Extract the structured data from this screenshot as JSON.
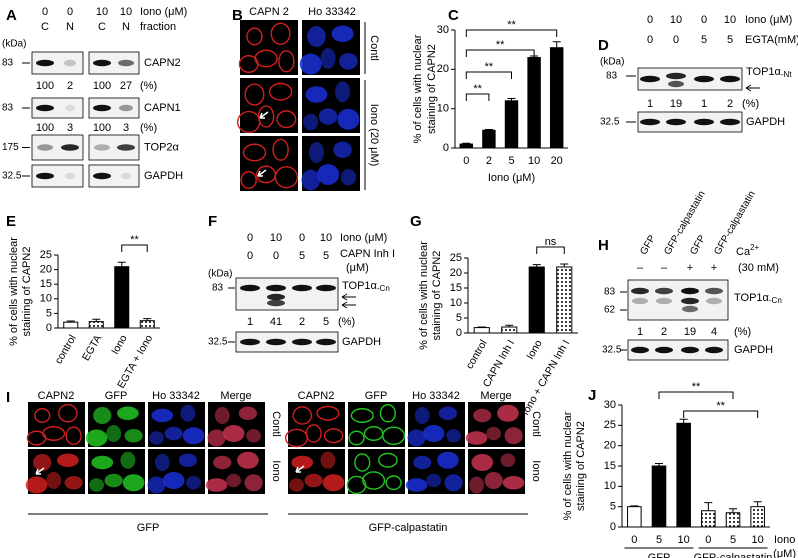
{
  "panel_labels": [
    "A",
    "B",
    "C",
    "D",
    "E",
    "F",
    "G",
    "H",
    "I",
    "J"
  ],
  "A": {
    "iono": [
      0,
      0,
      10,
      10
    ],
    "iono_label": "Iono (μM)",
    "fractions": [
      "C",
      "N",
      "C",
      "N"
    ],
    "fraction_label": "fraction",
    "kda": "(kDa)",
    "rows": [
      {
        "name": "CAPN2",
        "marker": 83
      },
      {
        "name": "CAPN1",
        "marker": 83
      },
      {
        "name": "TOP2α",
        "marker": 175
      },
      {
        "name": "GAPDH",
        "marker": 32.5
      }
    ],
    "quant": [
      [
        100,
        2,
        100,
        27
      ],
      [
        100,
        3,
        100,
        3
      ]
    ],
    "unit": "(%)"
  },
  "B": {
    "columns": [
      "CAPN 2",
      "Ho 33342"
    ],
    "rows": [
      "Contl",
      "Iono (20 μM)"
    ]
  },
  "D": {
    "iono": [
      0,
      10,
      0,
      10
    ],
    "iono_label": "Iono (μM)",
    "egta": [
      0,
      0,
      5,
      5
    ],
    "egta_label": "EGTA(mM)",
    "kda": "(kDa)",
    "markers": [
      83,
      32.5
    ],
    "protein": "TOP1α",
    "protein_sub": "-Nt",
    "quant": [
      1,
      19,
      1,
      2
    ],
    "unit": "(%)",
    "loading": "GAPDH"
  },
  "F": {
    "iono": [
      0,
      10,
      0,
      10
    ],
    "iono_label": "Iono (μM)",
    "inh": [
      0,
      0,
      5,
      5
    ],
    "inh_label": [
      "CAPN Inh I",
      "(μM)"
    ],
    "kda": "(kDa)",
    "markers": [
      83,
      32.5
    ],
    "protein": "TOP1α",
    "protein_sub": "-Cn",
    "quant": [
      1,
      41,
      2,
      5
    ],
    "unit": "(%)",
    "loading": "GAPDH"
  },
  "H": {
    "lanes": [
      "GFP",
      "GFP-calpastatin",
      "GFP",
      "GFP-calpastatin"
    ],
    "ca": "Ca",
    "ca_sup": "2+",
    "ca_conc": "(30 mM)",
    "ca_signs": [
      "–",
      "–",
      "+",
      "+"
    ],
    "markers": [
      83,
      62,
      32.5
    ],
    "protein": "TOP1α",
    "protein_sub": "-Cn",
    "quant": [
      1,
      2,
      19,
      4
    ],
    "unit": "(%)",
    "loading": "GAPDH"
  },
  "I": {
    "groups": [
      {
        "name": "GFP",
        "columns": [
          "CAPN2",
          "GFP",
          "Ho 33342",
          "Merge"
        ],
        "rows": [
          "Contl",
          "Iono"
        ]
      },
      {
        "name": "GFP-calpastatin",
        "columns": [
          "CAPN2",
          "GFP",
          "Ho 33342",
          "Merge"
        ],
        "rows": [
          "Contl",
          "Iono"
        ]
      }
    ]
  },
  "chart_data": [
    {
      "type": "bar",
      "ylabel": [
        "% of cells with nuclear",
        "staining of CAPN2"
      ],
      "xlabel": "Iono (μM)",
      "categories": [
        "0",
        "2",
        "5",
        "10",
        "20"
      ],
      "values": [
        1,
        4.5,
        12,
        23,
        25.5
      ],
      "errors": [
        0.2,
        0.2,
        0.6,
        0.4,
        1.5
      ],
      "fills": [
        "black",
        "black",
        "black",
        "black",
        "black"
      ],
      "ylim": [
        0,
        30
      ],
      "yticks": [
        0,
        10,
        20,
        30
      ],
      "significance": [
        "**",
        "**",
        "**",
        "**"
      ]
    },
    {
      "type": "bar",
      "ylabel": [
        "% of cells with nuclear",
        "staining of CAPN2"
      ],
      "categories": [
        "control",
        "EGTA",
        "Iono",
        "EGTA + Iono"
      ],
      "values": [
        2,
        2.2,
        21,
        2.5
      ],
      "errors": [
        0.4,
        0.8,
        1.5,
        0.7
      ],
      "fills": [
        "white",
        "dots",
        "black",
        "dots"
      ],
      "ylim": [
        0,
        25
      ],
      "yticks": [
        0,
        5,
        10,
        15,
        20,
        25
      ],
      "significance": [
        "**"
      ]
    },
    {
      "type": "bar",
      "ylabel": [
        "% of cells with nuclear",
        "staining of CAPN2"
      ],
      "categories": [
        "control",
        "CAPN Inh I",
        "Iono",
        "Iono + CAPN Inh I"
      ],
      "values": [
        1.8,
        2,
        22,
        22
      ],
      "errors": [
        0.2,
        0.6,
        0.8,
        1
      ],
      "fills": [
        "white",
        "dots",
        "black",
        "dots"
      ],
      "ylim": [
        0,
        25
      ],
      "yticks": [
        0,
        5,
        10,
        15,
        20,
        25
      ],
      "significance": [
        "ns"
      ]
    },
    {
      "type": "bar",
      "ylabel": [
        "% of cells with nuclear",
        "staining of CAPN2"
      ],
      "xlabel": "Iono",
      "xlabel_unit": "(μM)",
      "groups": [
        "GFP",
        "GFP-calpastatin"
      ],
      "categories": [
        "0",
        "5",
        "10",
        "0",
        "5",
        "10"
      ],
      "values": [
        5,
        15,
        25.5,
        4,
        3.5,
        5
      ],
      "errors": [
        0.2,
        0.6,
        1,
        2,
        1,
        1.2
      ],
      "fills": [
        "white",
        "black",
        "black",
        "dots",
        "dots",
        "dots"
      ],
      "ylim": [
        0,
        30
      ],
      "yticks": [
        0,
        5,
        10,
        15,
        20,
        25,
        30
      ],
      "significance": [
        "**",
        "**"
      ]
    }
  ]
}
